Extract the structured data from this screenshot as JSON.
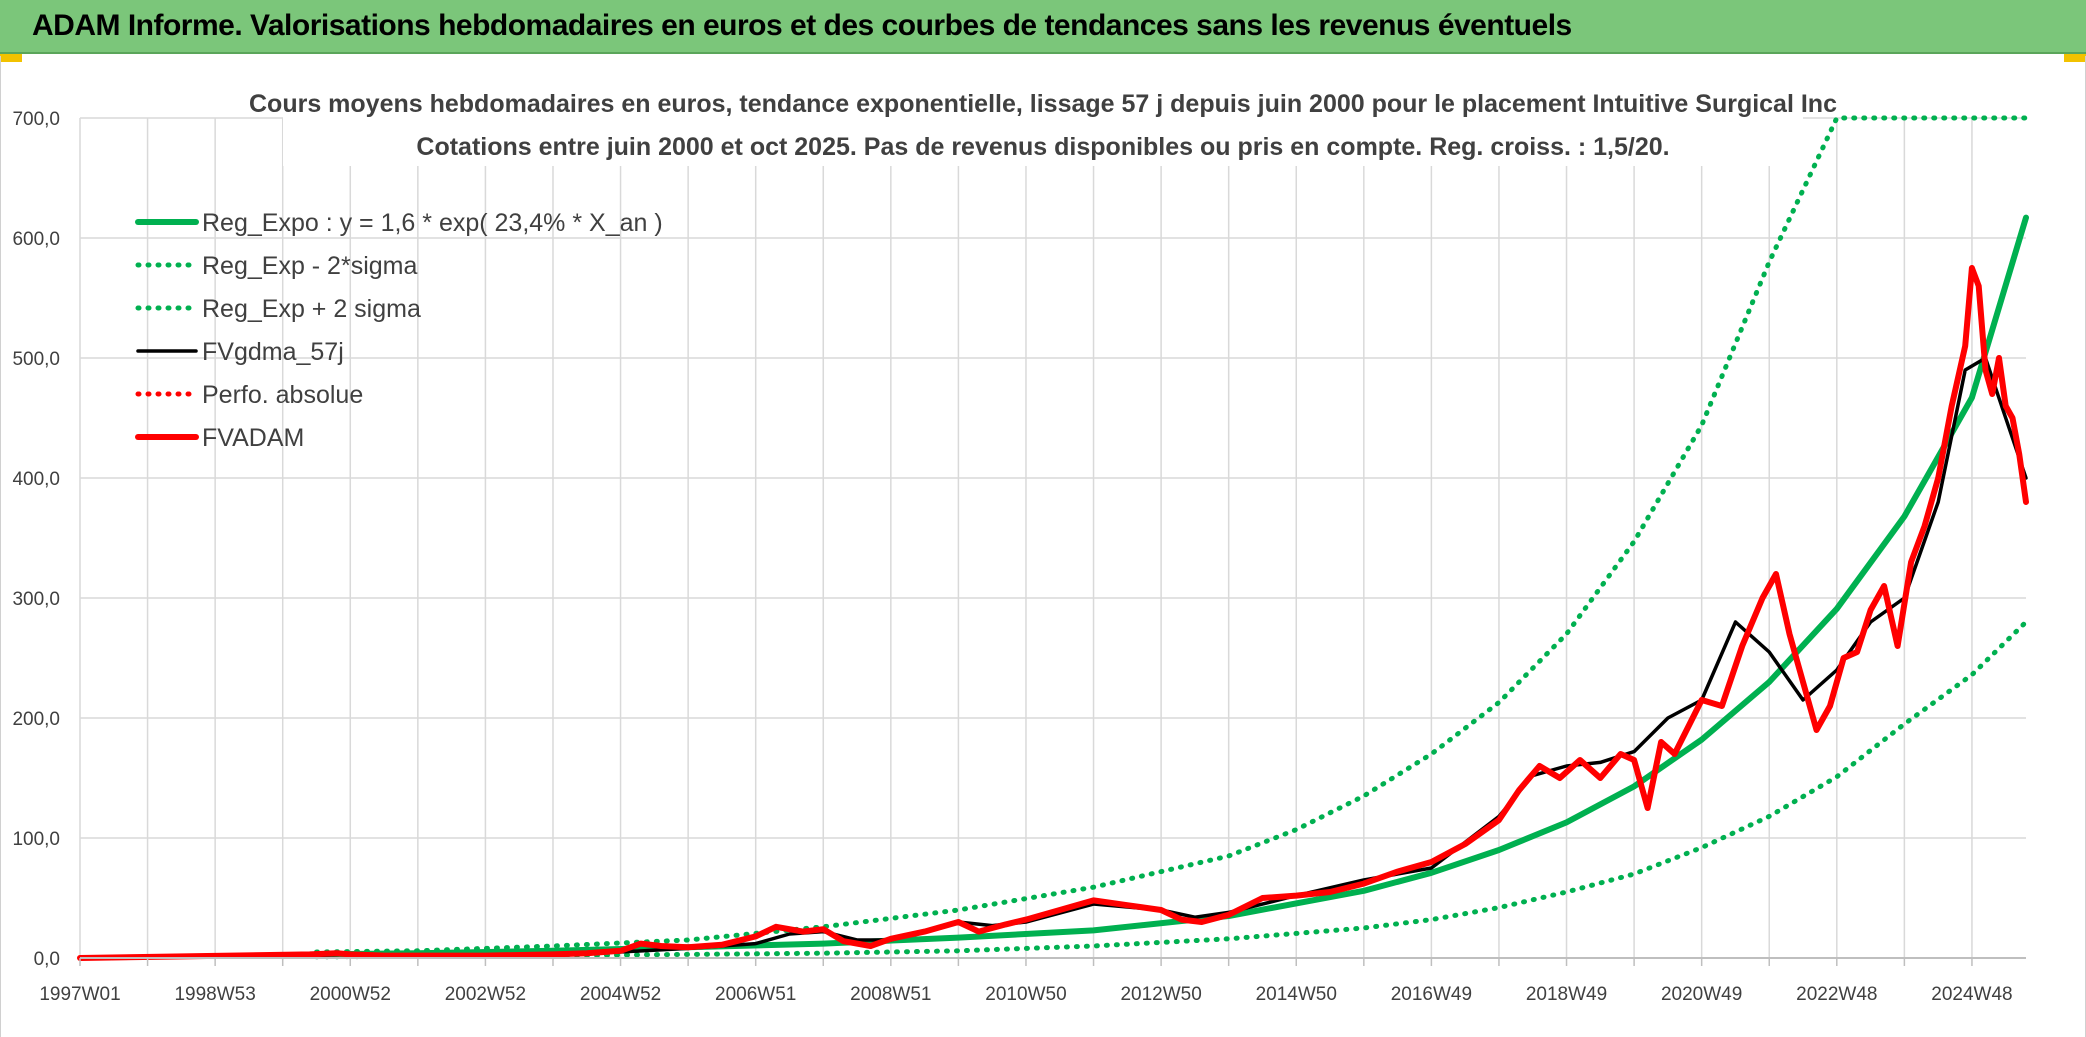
{
  "banner": {
    "title": "ADAM Informe. Valorisations hebdomadaires en euros et des courbes de tendances sans les revenus éventuels"
  },
  "colors": {
    "banner_bg": "#7bc67a",
    "green": "#00b050",
    "black": "#000000",
    "red": "#ff0000",
    "grid": "#d9d9d9",
    "accent": "#f2c200"
  },
  "chart_data": {
    "type": "line",
    "title": "Cours moyens hebdomadaires en euros, tendance exponentielle, lissage 57 j depuis juin 2000 pour le placement Intuitive Surgical Inc",
    "subtitle": "Cotations entre juin 2000 et oct 2025. Pas de revenus disponibles ou pris en compte. Reg. croiss. : 1,5/20.",
    "xlabel": "",
    "ylabel": "",
    "xlim": [
      1997.0,
      2025.8
    ],
    "ylim": [
      0,
      700
    ],
    "y_ticks": [
      "0,0",
      "100,0",
      "200,0",
      "300,0",
      "400,0",
      "500,0",
      "600,0",
      "700,0"
    ],
    "x_ticks": [
      {
        "label": "1997W01",
        "t": 1997.0
      },
      {
        "label": "1998W53",
        "t": 1999.0
      },
      {
        "label": "2000W52",
        "t": 2001.0
      },
      {
        "label": "2002W52",
        "t": 2003.0
      },
      {
        "label": "2004W52",
        "t": 2005.0
      },
      {
        "label": "2006W51",
        "t": 2007.0
      },
      {
        "label": "2008W51",
        "t": 2009.0
      },
      {
        "label": "2010W50",
        "t": 2011.0
      },
      {
        "label": "2012W50",
        "t": 2013.0
      },
      {
        "label": "2014W50",
        "t": 2015.0
      },
      {
        "label": "2016W49",
        "t": 2017.0
      },
      {
        "label": "2018W49",
        "t": 2019.0
      },
      {
        "label": "2020W49",
        "t": 2021.0
      },
      {
        "label": "2022W48",
        "t": 2023.0
      },
      {
        "label": "2024W48",
        "t": 2025.0
      }
    ],
    "grid": true,
    "legend_position": "top-left",
    "series": [
      {
        "name": "Reg_Expo : y = 1,6 * exp( 23,4% *  X_an )",
        "style": "solid-thick",
        "color": "#00b050",
        "x": [
          2000.5,
          2002,
          2004,
          2006,
          2008,
          2010,
          2012,
          2014,
          2016,
          2017,
          2018,
          2019,
          2020,
          2021,
          2022,
          2023,
          2024,
          2025,
          2025.8
        ],
        "y": [
          3,
          4,
          6,
          9,
          12,
          17,
          23,
          35,
          56,
          71,
          90,
          113,
          143,
          182,
          230,
          291,
          368,
          467,
          617
        ]
      },
      {
        "name": "Reg_Exp - 2*sigma",
        "style": "dotted",
        "color": "#00b050",
        "x": [
          2000.5,
          2004,
          2006,
          2008,
          2010,
          2012,
          2014,
          2016,
          2017,
          2018,
          2019,
          2020,
          2021,
          2022,
          2023,
          2024,
          2025,
          2025.8
        ],
        "y": [
          1,
          2,
          3,
          4,
          6,
          10,
          16,
          25,
          32,
          42,
          55,
          70,
          92,
          118,
          151,
          195,
          236,
          280
        ]
      },
      {
        "name": "Reg_Exp + 2 sigma",
        "style": "dotted",
        "color": "#00b050",
        "x": [
          2000.5,
          2002,
          2004,
          2006,
          2008,
          2010,
          2012,
          2014,
          2015,
          2016,
          2017,
          2018,
          2019,
          2020,
          2021,
          2022,
          2023.0,
          2025.8
        ],
        "y": [
          5,
          6,
          10,
          15,
          26,
          40,
          59,
          85,
          107,
          135,
          170,
          213,
          270,
          347,
          444,
          580,
          700,
          700
        ]
      },
      {
        "name": "FVgdma_57j",
        "style": "solid",
        "color": "#000000",
        "x": [
          1997,
          2000.4,
          2001,
          2002,
          2003,
          2004,
          2005,
          2006,
          2007,
          2007.5,
          2008,
          2008.5,
          2009,
          2010,
          2010.5,
          2011,
          2012,
          2013,
          2013.5,
          2014,
          2015,
          2016,
          2017,
          2018,
          2018.5,
          2019,
          2019.5,
          2020,
          2020.5,
          2021,
          2021.5,
          2022,
          2022.5,
          2023,
          2023.5,
          2024,
          2024.5,
          2024.9,
          2025.2,
          2025.5,
          2025.8
        ],
        "y": [
          0,
          2,
          3,
          2,
          2,
          3,
          5,
          8,
          12,
          20,
          22,
          15,
          15,
          30,
          27,
          30,
          45,
          40,
          34,
          38,
          52,
          65,
          75,
          118,
          152,
          160,
          163,
          172,
          200,
          215,
          280,
          255,
          215,
          240,
          280,
          300,
          380,
          490,
          500,
          450,
          400
        ]
      },
      {
        "name": "Perfo. absolue",
        "style": "dotted",
        "color": "#ff0000",
        "x": [],
        "y": []
      },
      {
        "name": "FVADAM",
        "style": "solid-thick",
        "color": "#ff0000",
        "x": [
          1997,
          2000.4,
          2000.8,
          2001,
          2001.5,
          2002,
          2003,
          2004,
          2004.5,
          2005,
          2005.3,
          2005.6,
          2006,
          2006.5,
          2007,
          2007.3,
          2007.7,
          2008,
          2008.3,
          2008.7,
          2009,
          2009.5,
          2010,
          2010.3,
          2010.7,
          2011,
          2011.5,
          2012,
          2012.5,
          2013,
          2013.3,
          2013.6,
          2014,
          2014.5,
          2015,
          2015.5,
          2016,
          2016.5,
          2017,
          2017.5,
          2018,
          2018.3,
          2018.6,
          2018.9,
          2019.2,
          2019.5,
          2019.8,
          2020.0,
          2020.2,
          2020.4,
          2020.6,
          2021,
          2021.3,
          2021.6,
          2021.9,
          2022.1,
          2022.3,
          2022.5,
          2022.7,
          2022.9,
          2023.1,
          2023.3,
          2023.5,
          2023.7,
          2023.9,
          2024.1,
          2024.3,
          2024.5,
          2024.7,
          2024.9,
          2025.0,
          2025.1,
          2025.2,
          2025.3,
          2025.4,
          2025.5,
          2025.6,
          2025.7,
          2025.8
        ],
        "y": [
          0,
          3,
          4,
          3,
          2,
          2,
          2,
          3,
          4,
          6,
          12,
          10,
          9,
          11,
          18,
          26,
          22,
          24,
          14,
          10,
          16,
          22,
          30,
          22,
          28,
          32,
          40,
          48,
          44,
          40,
          32,
          30,
          36,
          50,
          52,
          55,
          62,
          72,
          80,
          95,
          115,
          140,
          160,
          150,
          165,
          150,
          170,
          165,
          125,
          180,
          170,
          215,
          210,
          260,
          300,
          320,
          270,
          230,
          190,
          210,
          250,
          255,
          290,
          310,
          260,
          330,
          360,
          400,
          460,
          510,
          575,
          560,
          490,
          470,
          500,
          460,
          450,
          420,
          380
        ]
      }
    ]
  }
}
